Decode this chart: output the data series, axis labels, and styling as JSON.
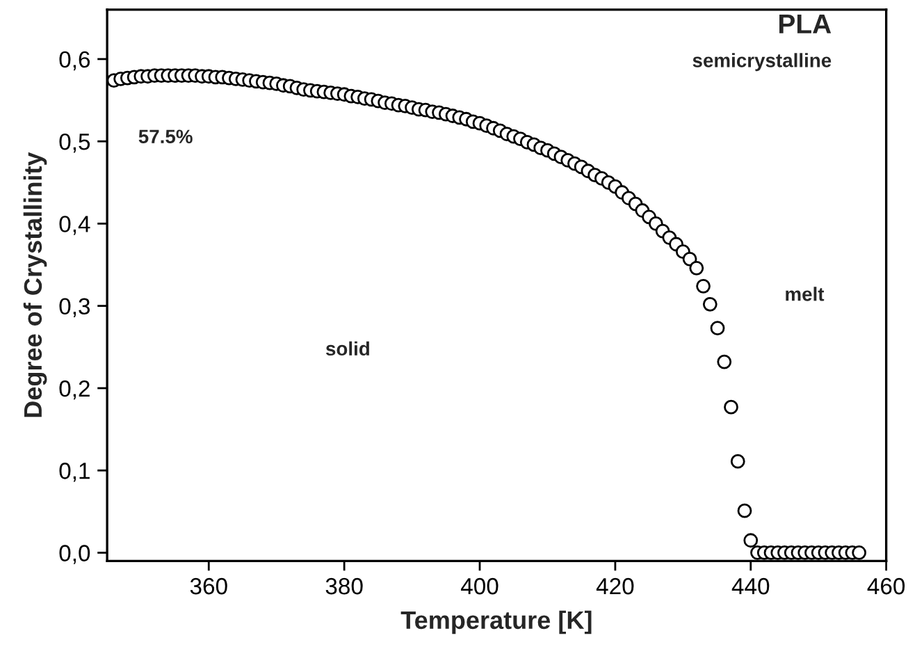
{
  "chart_data": {
    "type": "scatter",
    "title": "PLA",
    "subtitle": "semicrystalline",
    "xlabel": "Temperature [K]",
    "ylabel": "Degree of Crystallinity",
    "annotations": [
      "57.5%",
      "solid",
      "melt"
    ],
    "x": [
      346,
      347,
      348,
      349,
      350,
      351,
      352,
      353,
      354,
      355,
      356,
      357,
      358,
      359,
      360,
      361,
      362,
      363,
      364,
      365,
      366,
      367,
      368,
      369,
      370,
      371,
      372,
      373,
      374,
      375,
      376,
      377,
      378,
      379,
      380,
      381,
      382,
      383,
      384,
      385,
      386,
      387,
      388,
      389,
      390,
      391,
      392,
      393,
      394,
      395,
      396,
      397,
      398,
      399,
      400,
      401,
      402,
      403,
      404,
      405,
      406,
      407,
      408,
      409,
      410,
      411,
      412,
      413,
      414,
      415,
      416,
      417,
      418,
      419,
      420,
      421,
      422,
      423,
      424,
      425,
      426,
      427,
      428,
      429,
      430,
      431,
      432,
      433,
      434,
      435.1,
      436.1,
      437.1,
      438.1,
      439.1,
      440.0,
      441,
      442,
      443,
      444,
      445,
      446,
      447,
      448,
      449,
      450,
      451,
      452,
      453,
      454,
      455,
      456
    ],
    "series": [
      {
        "color": "#000000",
        "values": [
          0.574,
          0.576,
          0.577,
          0.578,
          0.579,
          0.579,
          0.58,
          0.58,
          0.58,
          0.58,
          0.58,
          0.58,
          0.58,
          0.579,
          0.579,
          0.578,
          0.578,
          0.577,
          0.576,
          0.575,
          0.574,
          0.573,
          0.572,
          0.571,
          0.57,
          0.568,
          0.567,
          0.565,
          0.563,
          0.562,
          0.561,
          0.56,
          0.559,
          0.558,
          0.557,
          0.555,
          0.554,
          0.552,
          0.551,
          0.549,
          0.547,
          0.546,
          0.544,
          0.543,
          0.541,
          0.539,
          0.538,
          0.536,
          0.535,
          0.533,
          0.531,
          0.529,
          0.527,
          0.524,
          0.522,
          0.519,
          0.516,
          0.513,
          0.509,
          0.506,
          0.503,
          0.499,
          0.496,
          0.492,
          0.489,
          0.485,
          0.481,
          0.477,
          0.473,
          0.469,
          0.464,
          0.459,
          0.455,
          0.45,
          0.445,
          0.438,
          0.431,
          0.424,
          0.416,
          0.408,
          0.4,
          0.391,
          0.383,
          0.375,
          0.366,
          0.357,
          0.346,
          0.324,
          0.302,
          0.273,
          0.232,
          0.177,
          0.111,
          0.051,
          0.015,
          0.0,
          0.0,
          0.0,
          0.0,
          0.0,
          0.0,
          0.0,
          0.0,
          0.0,
          0.0,
          0.0,
          0.0,
          0.0,
          0.0,
          0.0,
          0.0
        ]
      }
    ],
    "marker": "circle",
    "xlim": [
      345,
      460
    ],
    "xticks": [
      360,
      380,
      400,
      420,
      440,
      460
    ],
    "ylim": [
      -0.01,
      0.66
    ],
    "yticks": [
      {
        "value": 0.0,
        "label": "0,0"
      },
      {
        "value": 0.1,
        "label": "0,1"
      },
      {
        "value": 0.2,
        "label": "0,2"
      },
      {
        "value": 0.3,
        "label": "0,3"
      },
      {
        "value": 0.4,
        "label": "0,4"
      },
      {
        "value": 0.5,
        "label": "0,5"
      },
      {
        "value": 0.6,
        "label": "0,6"
      }
    ],
    "grid": false,
    "legend": false
  }
}
